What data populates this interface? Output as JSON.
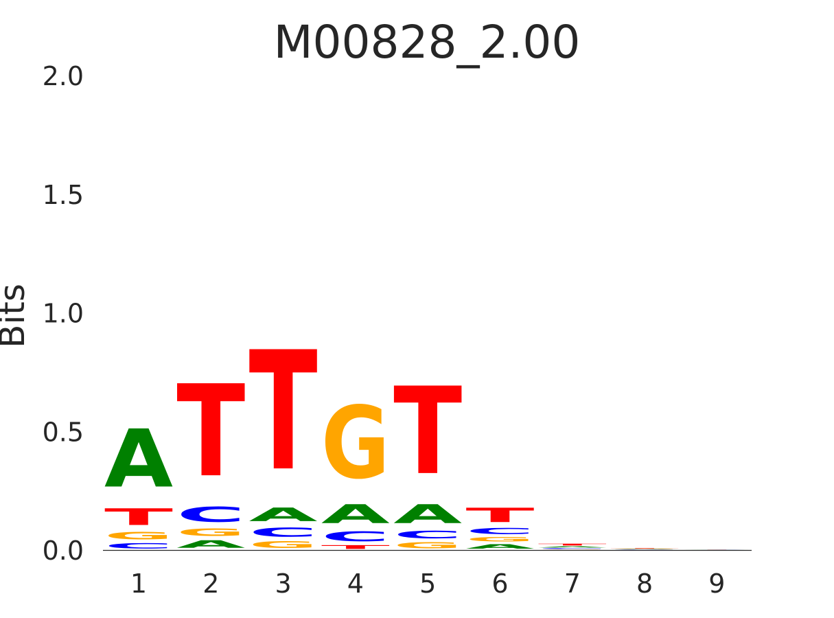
{
  "chart_data": {
    "type": "sequence-logo",
    "title": "M00828_2.00",
    "ylabel": "Bits",
    "xlabel": "",
    "ylim": [
      0,
      2.0
    ],
    "yticks": [
      "0.0",
      "0.5",
      "1.0",
      "1.5",
      "2.0"
    ],
    "ytick_values": [
      0,
      0.5,
      1.0,
      1.5,
      2.0
    ],
    "positions": [
      "1",
      "2",
      "3",
      "4",
      "5",
      "6",
      "7",
      "8",
      "9"
    ],
    "colors": {
      "A": "#008000",
      "C": "#0000ff",
      "G": "#ffa500",
      "T": "#ff0000"
    },
    "stacks": [
      [
        {
          "base": "C",
          "height": 0.035
        },
        {
          "base": "G",
          "height": 0.05
        },
        {
          "base": "T",
          "height": 0.11
        },
        {
          "base": "A",
          "height": 0.385
        }
      ],
      [
        {
          "base": "A",
          "height": 0.05
        },
        {
          "base": "G",
          "height": 0.05
        },
        {
          "base": "C",
          "height": 0.1
        },
        {
          "base": "T",
          "height": 0.61
        }
      ],
      [
        {
          "base": "G",
          "height": 0.045
        },
        {
          "base": "C",
          "height": 0.06
        },
        {
          "base": "A",
          "height": 0.09
        },
        {
          "base": "T",
          "height": 0.79
        }
      ],
      [
        {
          "base": "T",
          "height": 0.025
        },
        {
          "base": "C",
          "height": 0.065
        },
        {
          "base": "A",
          "height": 0.125
        },
        {
          "base": "G",
          "height": 0.48
        }
      ],
      [
        {
          "base": "G",
          "height": 0.04
        },
        {
          "base": "C",
          "height": 0.05
        },
        {
          "base": "A",
          "height": 0.125
        },
        {
          "base": "T",
          "height": 0.58
        }
      ],
      [
        {
          "base": "A",
          "height": 0.03
        },
        {
          "base": "G",
          "height": 0.03
        },
        {
          "base": "C",
          "height": 0.04
        },
        {
          "base": "T",
          "height": 0.095
        }
      ],
      [
        {
          "base": "G",
          "height": 0.003
        },
        {
          "base": "C",
          "height": 0.006
        },
        {
          "base": "A",
          "height": 0.008
        },
        {
          "base": "T",
          "height": 0.012
        }
      ],
      [
        {
          "base": "C",
          "height": 0.002
        },
        {
          "base": "G",
          "height": 0.002
        },
        {
          "base": "A",
          "height": 0.002
        },
        {
          "base": "T",
          "height": 0.003
        }
      ],
      [
        {
          "base": "A",
          "height": 0.0005
        },
        {
          "base": "C",
          "height": 0.0005
        },
        {
          "base": "G",
          "height": 0.0005
        },
        {
          "base": "T",
          "height": 0.0005
        }
      ]
    ]
  }
}
